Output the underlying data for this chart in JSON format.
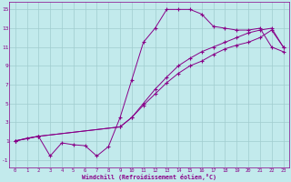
{
  "xlabel": "Windchill (Refroidissement éolien,°C)",
  "background_color": "#c2eaec",
  "grid_color": "#a0ccce",
  "line_color": "#880088",
  "spine_color": "#880088",
  "xlim": [
    -0.5,
    23.5
  ],
  "ylim": [
    -1.8,
    15.8
  ],
  "xticks": [
    0,
    1,
    2,
    3,
    4,
    5,
    6,
    7,
    8,
    9,
    10,
    11,
    12,
    13,
    14,
    15,
    16,
    17,
    18,
    19,
    20,
    21,
    22,
    23
  ],
  "yticks": [
    -1,
    1,
    3,
    5,
    7,
    9,
    11,
    13,
    15
  ],
  "line1_x": [
    0,
    1,
    2,
    3,
    4,
    5,
    6,
    7,
    8,
    9,
    10,
    11,
    12,
    13,
    14,
    15,
    16,
    17,
    18,
    19,
    20,
    21,
    22,
    23
  ],
  "line1_y": [
    1.0,
    1.3,
    1.5,
    -0.6,
    0.8,
    0.6,
    0.5,
    -0.6,
    0.4,
    3.5,
    7.5,
    11.5,
    13.0,
    15.0,
    15.0,
    15.0,
    14.5,
    13.2,
    13.0,
    12.8,
    12.8,
    13.0,
    11.0,
    10.5
  ],
  "line2_x": [
    0,
    2,
    9,
    10,
    11,
    12,
    13,
    14,
    15,
    16,
    17,
    18,
    19,
    20,
    21,
    22,
    23
  ],
  "line2_y": [
    1.0,
    1.5,
    2.5,
    3.5,
    4.8,
    6.0,
    7.2,
    8.2,
    9.0,
    9.5,
    10.2,
    10.8,
    11.2,
    11.5,
    12.0,
    12.8,
    11.0
  ],
  "line3_x": [
    0,
    2,
    9,
    10,
    11,
    12,
    13,
    14,
    15,
    16,
    17,
    18,
    19,
    20,
    21,
    22,
    23
  ],
  "line3_y": [
    1.0,
    1.5,
    2.5,
    3.5,
    5.0,
    6.5,
    7.8,
    9.0,
    9.8,
    10.5,
    11.0,
    11.5,
    12.0,
    12.5,
    12.8,
    13.0,
    11.0
  ]
}
